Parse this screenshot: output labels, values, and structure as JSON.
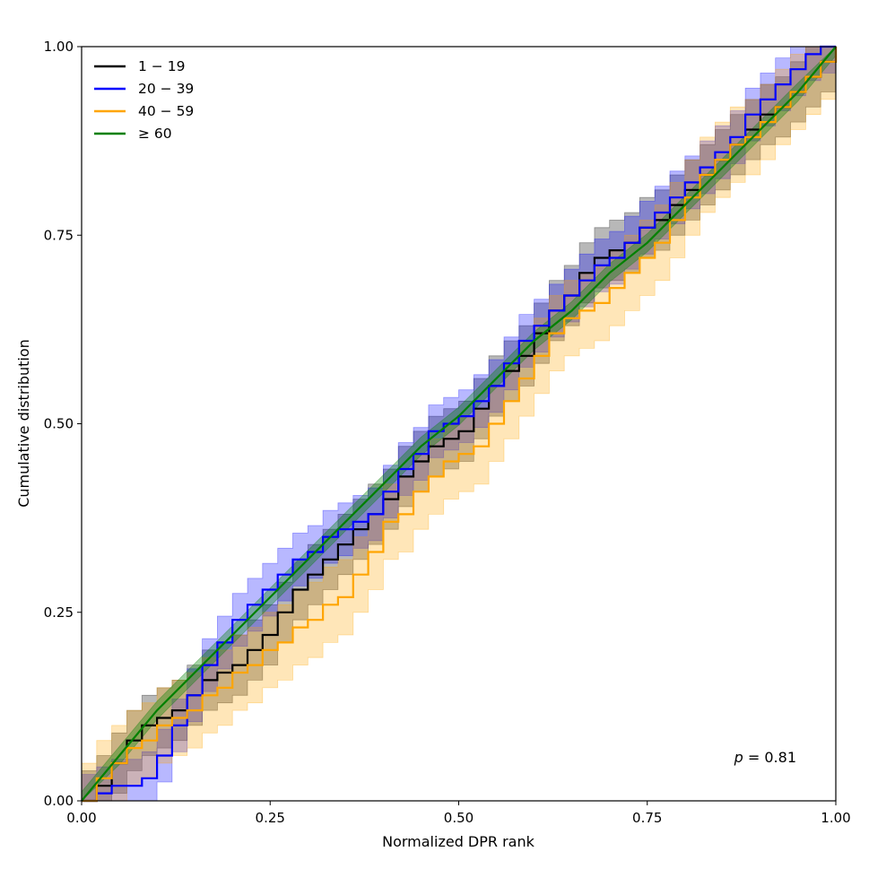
{
  "chart_data": {
    "type": "line",
    "xlabel": "Normalized DPR rank",
    "ylabel": "Cumulative distribution",
    "xlim": [
      0,
      1
    ],
    "ylim": [
      0,
      1
    ],
    "xticks": [
      "0.00",
      "0.25",
      "0.50",
      "0.75",
      "1.00"
    ],
    "yticks": [
      "0.00",
      "0.25",
      "0.50",
      "0.75",
      "1.00"
    ],
    "grid": false,
    "legend_position": "top-left",
    "annotation": "p = 0.81",
    "series": [
      {
        "name": "1 − 19",
        "color": "#000000",
        "step": true,
        "x": [
          0.0,
          0.02,
          0.04,
          0.06,
          0.08,
          0.1,
          0.12,
          0.14,
          0.16,
          0.18,
          0.2,
          0.22,
          0.24,
          0.26,
          0.28,
          0.3,
          0.32,
          0.34,
          0.36,
          0.38,
          0.4,
          0.42,
          0.44,
          0.46,
          0.48,
          0.5,
          0.52,
          0.54,
          0.56,
          0.58,
          0.6,
          0.62,
          0.64,
          0.66,
          0.68,
          0.7,
          0.72,
          0.74,
          0.76,
          0.78,
          0.8,
          0.82,
          0.84,
          0.86,
          0.88,
          0.9,
          0.92,
          0.94,
          0.96,
          0.98,
          1.0
        ],
        "y": [
          0.0,
          0.02,
          0.05,
          0.08,
          0.1,
          0.11,
          0.12,
          0.14,
          0.16,
          0.17,
          0.18,
          0.2,
          0.22,
          0.25,
          0.28,
          0.3,
          0.32,
          0.34,
          0.36,
          0.38,
          0.4,
          0.43,
          0.45,
          0.47,
          0.48,
          0.49,
          0.52,
          0.55,
          0.57,
          0.59,
          0.62,
          0.65,
          0.67,
          0.7,
          0.72,
          0.73,
          0.74,
          0.76,
          0.77,
          0.79,
          0.81,
          0.83,
          0.85,
          0.87,
          0.89,
          0.91,
          0.92,
          0.94,
          0.96,
          0.98,
          1.0
        ],
        "band_width": 0.04
      },
      {
        "name": "20 − 39",
        "color": "#0000ff",
        "step": true,
        "x": [
          0.0,
          0.02,
          0.04,
          0.06,
          0.08,
          0.1,
          0.12,
          0.14,
          0.16,
          0.18,
          0.2,
          0.22,
          0.24,
          0.26,
          0.28,
          0.3,
          0.32,
          0.34,
          0.36,
          0.38,
          0.4,
          0.42,
          0.44,
          0.46,
          0.48,
          0.5,
          0.52,
          0.54,
          0.56,
          0.58,
          0.6,
          0.62,
          0.64,
          0.66,
          0.68,
          0.7,
          0.72,
          0.74,
          0.76,
          0.78,
          0.8,
          0.82,
          0.84,
          0.86,
          0.88,
          0.9,
          0.92,
          0.94,
          0.96,
          0.98,
          1.0
        ],
        "y": [
          0.0,
          0.01,
          0.02,
          0.02,
          0.03,
          0.06,
          0.1,
          0.14,
          0.18,
          0.21,
          0.24,
          0.26,
          0.28,
          0.3,
          0.32,
          0.33,
          0.35,
          0.36,
          0.37,
          0.38,
          0.41,
          0.44,
          0.46,
          0.49,
          0.5,
          0.51,
          0.53,
          0.55,
          0.58,
          0.61,
          0.63,
          0.65,
          0.67,
          0.69,
          0.71,
          0.72,
          0.74,
          0.76,
          0.78,
          0.8,
          0.82,
          0.84,
          0.86,
          0.88,
          0.91,
          0.93,
          0.95,
          0.97,
          0.99,
          1.0,
          1.0
        ],
        "band_width": 0.035
      },
      {
        "name": "40 − 59",
        "color": "#ffa500",
        "step": true,
        "x": [
          0.0,
          0.02,
          0.04,
          0.06,
          0.08,
          0.1,
          0.12,
          0.14,
          0.16,
          0.18,
          0.2,
          0.22,
          0.24,
          0.26,
          0.28,
          0.3,
          0.32,
          0.34,
          0.36,
          0.38,
          0.4,
          0.42,
          0.44,
          0.46,
          0.48,
          0.5,
          0.52,
          0.54,
          0.56,
          0.58,
          0.6,
          0.62,
          0.64,
          0.66,
          0.68,
          0.7,
          0.72,
          0.74,
          0.76,
          0.78,
          0.8,
          0.82,
          0.84,
          0.86,
          0.88,
          0.9,
          0.92,
          0.94,
          0.96,
          0.98,
          1.0
        ],
        "y": [
          0.0,
          0.03,
          0.05,
          0.07,
          0.08,
          0.1,
          0.11,
          0.12,
          0.14,
          0.15,
          0.17,
          0.18,
          0.2,
          0.21,
          0.23,
          0.24,
          0.26,
          0.27,
          0.3,
          0.33,
          0.37,
          0.38,
          0.41,
          0.43,
          0.45,
          0.46,
          0.47,
          0.5,
          0.53,
          0.56,
          0.59,
          0.62,
          0.64,
          0.65,
          0.66,
          0.68,
          0.7,
          0.72,
          0.74,
          0.77,
          0.8,
          0.83,
          0.85,
          0.87,
          0.88,
          0.9,
          0.92,
          0.94,
          0.96,
          0.98,
          1.0
        ],
        "band_width": 0.05
      },
      {
        "name": "≥ 60",
        "color": "#008000",
        "step": false,
        "x": [
          0.0,
          0.05,
          0.1,
          0.15,
          0.2,
          0.25,
          0.3,
          0.35,
          0.4,
          0.45,
          0.5,
          0.55,
          0.6,
          0.65,
          0.7,
          0.75,
          0.8,
          0.85,
          0.9,
          0.95,
          1.0
        ],
        "y": [
          0.0,
          0.06,
          0.12,
          0.17,
          0.22,
          0.27,
          0.32,
          0.37,
          0.42,
          0.47,
          0.51,
          0.56,
          0.61,
          0.65,
          0.7,
          0.74,
          0.79,
          0.84,
          0.89,
          0.94,
          1.0
        ],
        "band_width": 0.012
      }
    ]
  }
}
